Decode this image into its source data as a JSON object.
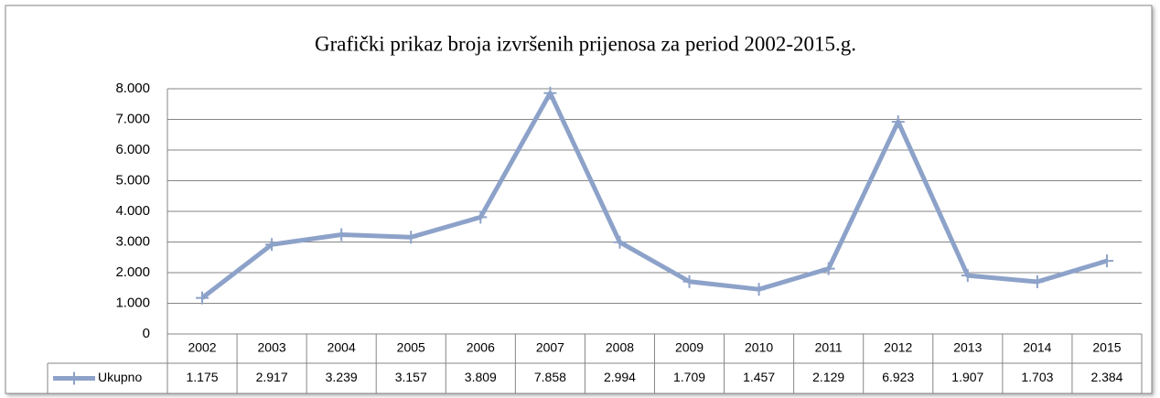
{
  "chart_data": {
    "type": "line",
    "title": "Grafički prikaz broja izvršenih prijenosa za period 2002-2015.g.",
    "categories": [
      "2002",
      "2003",
      "2004",
      "2005",
      "2006",
      "2007",
      "2008",
      "2009",
      "2010",
      "2011",
      "2012",
      "2013",
      "2014",
      "2015"
    ],
    "series": [
      {
        "name": "Ukupno",
        "color": "#8da2c9",
        "values": [
          1175,
          2917,
          3239,
          3157,
          3809,
          7858,
          2994,
          1709,
          1457,
          2129,
          6923,
          1907,
          1703,
          2384
        ],
        "value_labels": [
          "1.175",
          "2.917",
          "3.239",
          "3.157",
          "3.809",
          "7.858",
          "2.994",
          "1.709",
          "1.457",
          "2.129",
          "6.923",
          "1.907",
          "1.703",
          "2.384"
        ]
      }
    ],
    "ylim": [
      0,
      8000
    ],
    "yticks": [
      0,
      {
        "value": 1000,
        "label": "1.000"
      },
      {
        "value": 2000,
        "label": "2.000"
      },
      {
        "value": 3000,
        "label": "3.000"
      },
      {
        "value": 4000,
        "label": "4.000"
      },
      {
        "value": 5000,
        "label": "5.000"
      },
      {
        "value": 6000,
        "label": "6.000"
      },
      {
        "value": 7000,
        "label": "7.000"
      },
      {
        "value": 8000,
        "label": "8.000"
      }
    ],
    "grid": true
  }
}
